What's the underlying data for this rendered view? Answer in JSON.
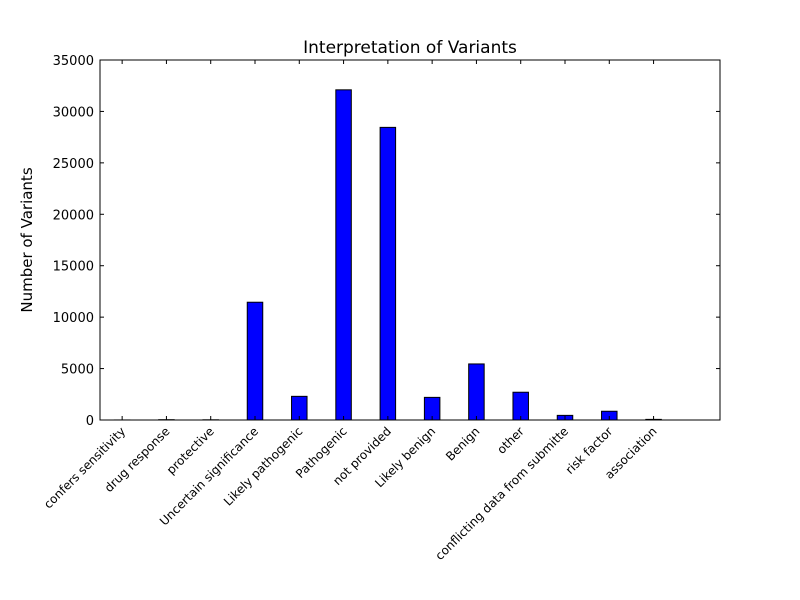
{
  "chart_data": {
    "type": "bar",
    "title": "Interpretation of Variants",
    "xlabel": "",
    "ylabel": "Number of Variants",
    "categories": [
      "confers sensitivity",
      "drug response",
      "protective",
      "Uncertain significance",
      "Likely pathogenic",
      "Pathogenic",
      "not provided",
      "Likely benign",
      "Benign",
      "other",
      "conflicting data from submitte",
      "risk factor",
      "association"
    ],
    "values": [
      5,
      30,
      20,
      11450,
      2300,
      32100,
      28450,
      2200,
      5450,
      2700,
      450,
      850,
      60
    ],
    "ylim": [
      0,
      35000
    ],
    "yticks": [
      0,
      5000,
      10000,
      15000,
      20000,
      25000,
      30000,
      35000
    ],
    "bar_color": "#0000ff",
    "edge_color": "#000000",
    "grid": false
  }
}
